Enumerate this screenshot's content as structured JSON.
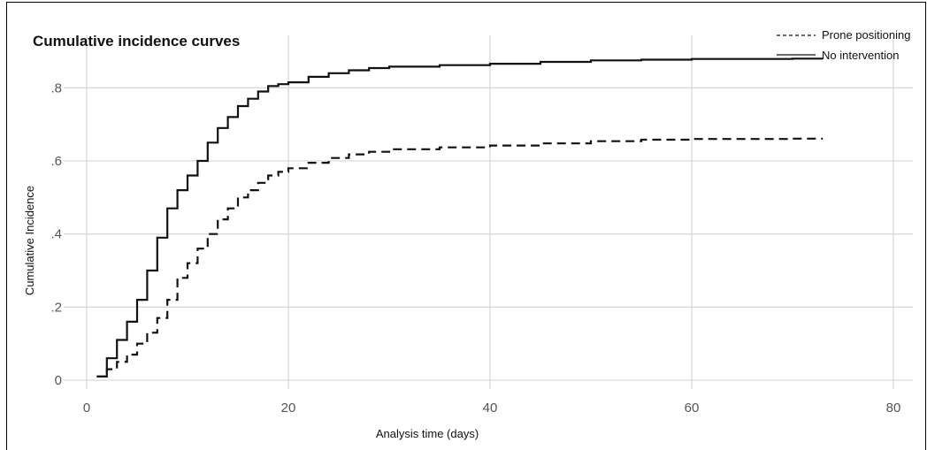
{
  "chart_data": {
    "type": "line",
    "title": "Cumulative incidence curves",
    "xlabel": "Analysis time (days)",
    "ylabel": "Cumulative Incidence",
    "xlim": [
      0,
      80
    ],
    "ylim": [
      0,
      0.9
    ],
    "x_ticks": [
      0,
      20,
      40,
      60,
      80
    ],
    "x_tick_labels": [
      "0",
      "20",
      "40",
      "60",
      "80"
    ],
    "y_ticks": [
      0,
      0.2,
      0.4,
      0.6,
      0.8
    ],
    "y_tick_labels": [
      "0",
      ".2",
      ".4",
      ".6",
      ".8"
    ],
    "grid": true,
    "legend_position": "top-right",
    "series": [
      {
        "name": "Prone positioning",
        "style": "dashed",
        "color": "#111111",
        "x": [
          1,
          2,
          3,
          4,
          5,
          6,
          7,
          8,
          9,
          10,
          11,
          12,
          13,
          14,
          15,
          16,
          17,
          18,
          19,
          20,
          22,
          24,
          26,
          28,
          30,
          35,
          40,
          45,
          50,
          55,
          60,
          65,
          70,
          73
        ],
        "y": [
          0.01,
          0.03,
          0.05,
          0.07,
          0.1,
          0.13,
          0.17,
          0.22,
          0.28,
          0.32,
          0.36,
          0.4,
          0.44,
          0.47,
          0.5,
          0.52,
          0.54,
          0.56,
          0.57,
          0.58,
          0.595,
          0.608,
          0.618,
          0.625,
          0.632,
          0.637,
          0.642,
          0.648,
          0.654,
          0.658,
          0.66,
          0.66,
          0.661,
          0.661
        ]
      },
      {
        "name": "No intervention",
        "style": "solid",
        "color": "#111111",
        "x": [
          1,
          2,
          3,
          4,
          5,
          6,
          7,
          8,
          9,
          10,
          11,
          12,
          13,
          14,
          15,
          16,
          17,
          18,
          19,
          20,
          22,
          24,
          26,
          28,
          30,
          35,
          40,
          45,
          50,
          55,
          60,
          65,
          70,
          73
        ],
        "y": [
          0.01,
          0.06,
          0.11,
          0.16,
          0.22,
          0.3,
          0.39,
          0.47,
          0.52,
          0.56,
          0.6,
          0.65,
          0.69,
          0.72,
          0.75,
          0.77,
          0.79,
          0.805,
          0.81,
          0.815,
          0.83,
          0.84,
          0.848,
          0.854,
          0.858,
          0.862,
          0.866,
          0.871,
          0.875,
          0.877,
          0.879,
          0.879,
          0.88,
          0.88
        ]
      }
    ]
  }
}
